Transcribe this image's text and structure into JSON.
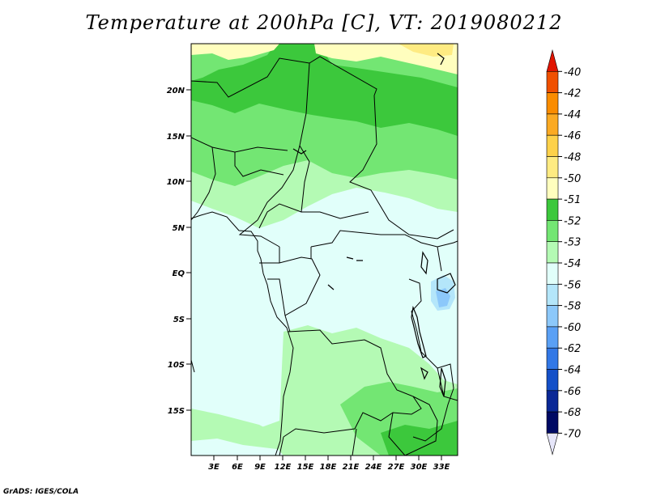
{
  "title": "Temperature at 200hPa [C], VT: 2019080212",
  "credit": "GrADS: IGES/COLA",
  "map": {
    "lat_labels": [
      "20N",
      "15N",
      "10N",
      "5N",
      "EQ",
      "5S",
      "10S",
      "15S"
    ],
    "lon_labels": [
      "3E",
      "6E",
      "9E",
      "12E",
      "15E",
      "18E",
      "21E",
      "24E",
      "27E",
      "30E",
      "33E"
    ]
  },
  "colorbar": {
    "labels": [
      "-40",
      "-42",
      "-44",
      "-46",
      "-48",
      "-50",
      "-51",
      "-52",
      "-53",
      "-54",
      "-56",
      "-58",
      "-60",
      "-62",
      "-64",
      "-66",
      "-68",
      "-70"
    ],
    "colors": [
      "#e11400",
      "#f05000",
      "#fa8c00",
      "#fbaa23",
      "#fdd14a",
      "#feeb82",
      "#fffebe",
      "#3cc83c",
      "#73e673",
      "#b4fab4",
      "#e1fffa",
      "#b4e6fa",
      "#8cc8fa",
      "#5aa0f5",
      "#3278e6",
      "#1450c8",
      "#0a2896",
      "#000a64",
      "#e6e6fa"
    ]
  },
  "field_colors": {
    "-50": "#feeb82",
    "-51": "#fffebe",
    "-52": "#3cc83c",
    "-53": "#73e673",
    "-54": "#b4fab4",
    "-56": "#e1fffa",
    "-58": "#b4e6fa",
    "-60": "#8cc8fa"
  }
}
